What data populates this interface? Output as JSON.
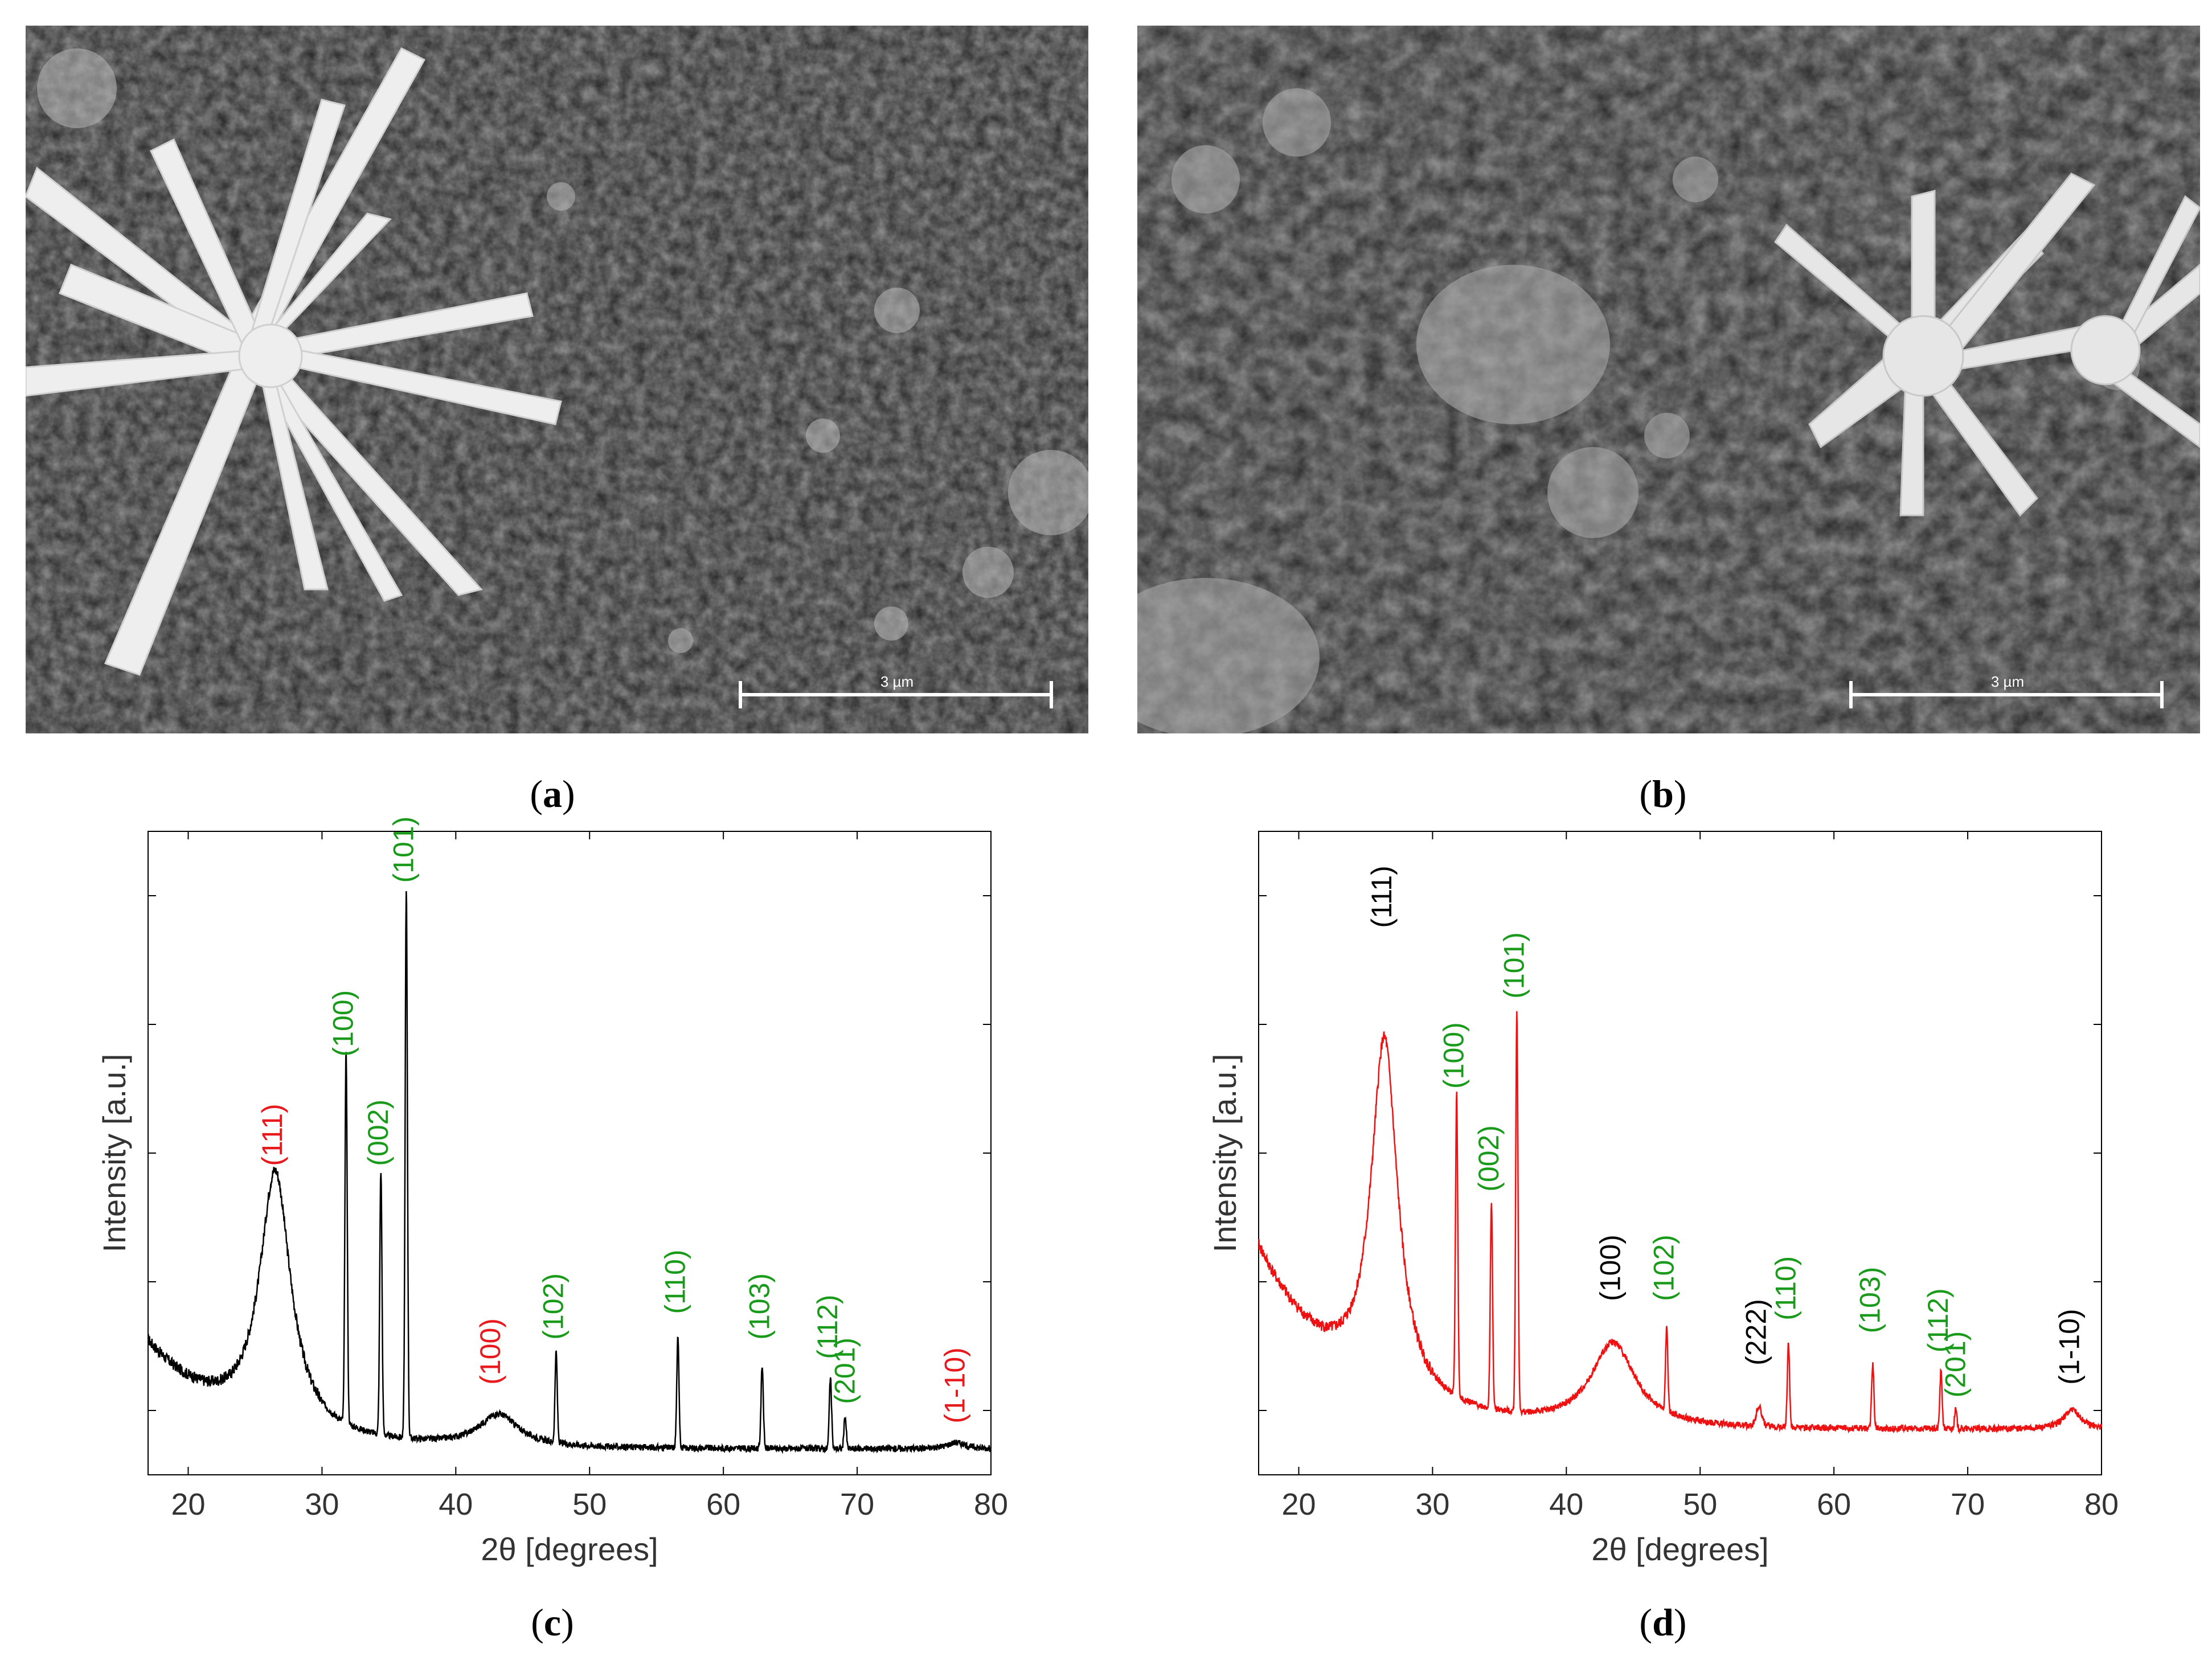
{
  "panels": {
    "a": {
      "label_open": "(",
      "label_letter": "a",
      "label_close": ")"
    },
    "b": {
      "label_open": "(",
      "label_letter": "b",
      "label_close": ")"
    },
    "c": {
      "label_open": "(",
      "label_letter": "c",
      "label_close": ")"
    },
    "d": {
      "label_open": "(",
      "label_letter": "d",
      "label_close": ")"
    }
  },
  "sem": {
    "a": {
      "scale_text": "3 µm"
    },
    "b": {
      "scale_text": "3 µm"
    }
  },
  "colors": {
    "green": "#1a9a1a",
    "red_label": "#e8191c",
    "black": "#000000",
    "red_trace": "#ee1111"
  },
  "chart_data": [
    {
      "type": "line",
      "panel": "c",
      "title": "",
      "xlabel": "2θ [degrees]",
      "ylabel": "Intensity [a.u.]",
      "xlim": [
        17,
        80
      ],
      "ylim": [
        0,
        100
      ],
      "xticks": [
        20,
        30,
        40,
        50,
        60,
        70,
        80
      ],
      "series_color": "#000000",
      "baseline": 4,
      "hump": {
        "start": 17,
        "base": 22,
        "rise": 22
      },
      "peaks": [
        {
          "x": 26.5,
          "height": 40,
          "width": 1.4
        },
        {
          "x": 31.8,
          "height": 58,
          "width": 0.12
        },
        {
          "x": 34.4,
          "height": 41,
          "width": 0.12
        },
        {
          "x": 36.3,
          "height": 85,
          "width": 0.12
        },
        {
          "x": 43.2,
          "height": 5,
          "width": 1.8
        },
        {
          "x": 47.5,
          "height": 14,
          "width": 0.12
        },
        {
          "x": 56.6,
          "height": 17,
          "width": 0.12
        },
        {
          "x": 62.9,
          "height": 13,
          "width": 0.12
        },
        {
          "x": 68.0,
          "height": 11,
          "width": 0.12
        },
        {
          "x": 69.1,
          "height": 5,
          "width": 0.12
        },
        {
          "x": 77.4,
          "height": 1,
          "width": 0.8
        }
      ],
      "annotations": [
        {
          "text": "(111)",
          "x": 26.5,
          "y": 48,
          "color": "#e8191c"
        },
        {
          "text": "(100)",
          "x": 31.8,
          "y": 65,
          "color": "#1a9a1a"
        },
        {
          "text": "(002)",
          "x": 34.4,
          "y": 48,
          "color": "#1a9a1a"
        },
        {
          "text": "(101)",
          "x": 36.3,
          "y": 92,
          "color": "#1a9a1a"
        },
        {
          "text": "(100)",
          "x": 42.8,
          "y": 14,
          "color": "#e8191c"
        },
        {
          "text": "(102)",
          "x": 47.5,
          "y": 21,
          "color": "#1a9a1a"
        },
        {
          "text": "(110)",
          "x": 56.6,
          "y": 25,
          "color": "#1a9a1a"
        },
        {
          "text": "(103)",
          "x": 62.9,
          "y": 21,
          "color": "#1a9a1a"
        },
        {
          "text": "(112)",
          "x": 68.0,
          "y": 18,
          "color": "#1a9a1a"
        },
        {
          "text": "(201)",
          "x": 69.3,
          "y": 11,
          "color": "#1a9a1a"
        },
        {
          "text": "(1-10)",
          "x": 77.5,
          "y": 8,
          "color": "#e8191c"
        }
      ]
    },
    {
      "type": "line",
      "panel": "d",
      "title": "",
      "xlabel": "2θ [degrees]",
      "ylabel": "Intensity [a.u.]",
      "xlim": [
        17,
        80
      ],
      "ylim": [
        0,
        100
      ],
      "xticks": [
        20,
        30,
        40,
        50,
        60,
        70,
        80
      ],
      "series_color": "#ee1111",
      "baseline": 7,
      "hump": {
        "start": 17,
        "base": 38,
        "rise": 10
      },
      "peaks": [
        {
          "x": 26.4,
          "height": 55,
          "width": 1.2
        },
        {
          "x": 31.8,
          "height": 47,
          "width": 0.12
        },
        {
          "x": 34.4,
          "height": 32,
          "width": 0.12
        },
        {
          "x": 36.3,
          "height": 62,
          "width": 0.12
        },
        {
          "x": 43.5,
          "height": 13,
          "width": 2.0
        },
        {
          "x": 47.5,
          "height": 13,
          "width": 0.12
        },
        {
          "x": 54.4,
          "height": 3,
          "width": 0.3
        },
        {
          "x": 56.6,
          "height": 13,
          "width": 0.12
        },
        {
          "x": 62.9,
          "height": 10,
          "width": 0.12
        },
        {
          "x": 68.0,
          "height": 9,
          "width": 0.12
        },
        {
          "x": 69.1,
          "height": 3,
          "width": 0.12
        },
        {
          "x": 77.8,
          "height": 3,
          "width": 0.8
        }
      ],
      "annotations": [
        {
          "text": "(111)",
          "x": 26.4,
          "y": 85,
          "color": "#000000"
        },
        {
          "text": "(100)",
          "x": 31.8,
          "y": 60,
          "color": "#1a9a1a"
        },
        {
          "text": "(002)",
          "x": 34.4,
          "y": 44,
          "color": "#1a9a1a"
        },
        {
          "text": "(101)",
          "x": 36.3,
          "y": 74,
          "color": "#1a9a1a"
        },
        {
          "text": "(100)",
          "x": 43.5,
          "y": 27,
          "color": "#000000"
        },
        {
          "text": "(102)",
          "x": 47.5,
          "y": 27,
          "color": "#1a9a1a"
        },
        {
          "text": "(222)",
          "x": 54.4,
          "y": 17,
          "color": "#000000"
        },
        {
          "text": "(110)",
          "x": 56.6,
          "y": 24,
          "color": "#1a9a1a"
        },
        {
          "text": "(103)",
          "x": 62.9,
          "y": 22,
          "color": "#1a9a1a"
        },
        {
          "text": "(112)",
          "x": 68.0,
          "y": 19,
          "color": "#1a9a1a"
        },
        {
          "text": "(201)",
          "x": 69.3,
          "y": 12,
          "color": "#1a9a1a"
        },
        {
          "text": "(1-10)",
          "x": 77.8,
          "y": 14,
          "color": "#000000"
        }
      ]
    }
  ]
}
